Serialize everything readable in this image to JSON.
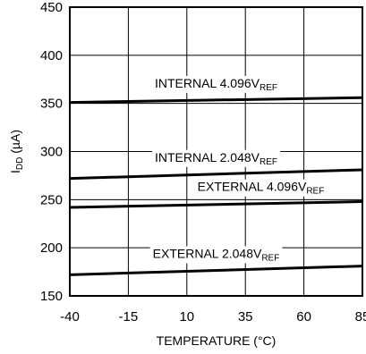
{
  "chart_data": {
    "type": "line",
    "xlabel": "TEMPERATURE (°C)",
    "ylabel": {
      "main": "I",
      "sub": "DD",
      "rest": " (µA)"
    },
    "xlim": [
      -40,
      85
    ],
    "ylim": [
      150,
      450
    ],
    "x_ticks": [
      "-40",
      "-15",
      "10",
      "35",
      "60",
      "85"
    ],
    "y_ticks": [
      "150",
      "200",
      "250",
      "300",
      "350",
      "400",
      "450"
    ],
    "grid": true,
    "series": [
      {
        "name": "INTERNAL 4.096V",
        "name_sub": "REF",
        "x": [
          -40,
          85
        ],
        "y": [
          351,
          356
        ]
      },
      {
        "name": "INTERNAL 2.048V",
        "name_sub": "REF",
        "x": [
          -40,
          85
        ],
        "y": [
          272,
          281
        ]
      },
      {
        "name": "EXTERNAL 4.096V",
        "name_sub": "REF",
        "x": [
          -40,
          85
        ],
        "y": [
          242,
          248
        ]
      },
      {
        "name": "EXTERNAL 2.048V",
        "name_sub": "REF",
        "x": [
          -40,
          85
        ],
        "y": [
          172,
          181
        ]
      }
    ]
  }
}
